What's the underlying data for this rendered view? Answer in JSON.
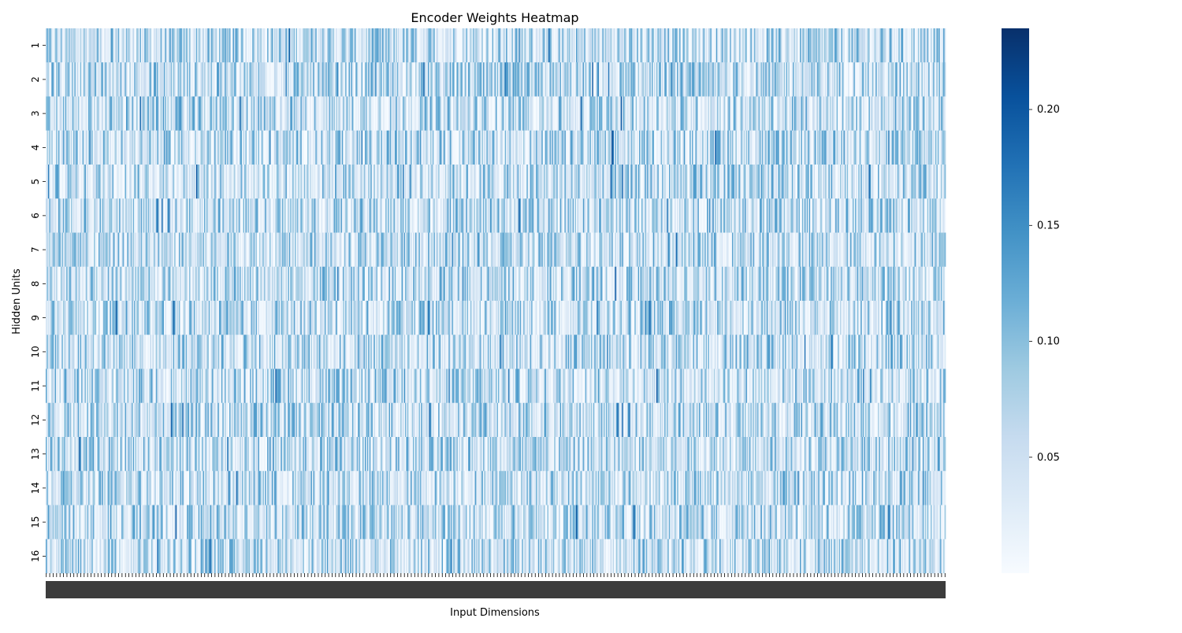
{
  "chart_data": {
    "type": "heatmap",
    "title": "Encoder Weights Heatmap",
    "xlabel": "Input Dimensions",
    "ylabel": "Hidden Units",
    "y_categories": [
      "1",
      "2",
      "3",
      "4",
      "5",
      "6",
      "7",
      "8",
      "9",
      "10",
      "11",
      "12",
      "13",
      "14",
      "15",
      "16"
    ],
    "x_count": 784,
    "colormap": "Blues",
    "color_min": 0.0,
    "color_max": 0.235,
    "colorbar_ticks": [
      0.05,
      0.1,
      0.15,
      0.2
    ],
    "colorbar_tick_labels": [
      "0.05",
      "0.10",
      "0.15",
      "0.20"
    ],
    "grid": false,
    "colorbar_position": "right",
    "note": ""
  }
}
